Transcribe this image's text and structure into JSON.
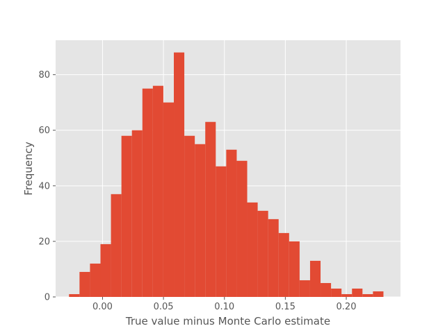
{
  "chart_data": {
    "type": "bar",
    "subtype": "histogram",
    "xlabel": "True value minus Monte Carlo estimate",
    "ylabel": "Frequency",
    "xlim": [
      -0.0385,
      0.2445
    ],
    "ylim": [
      0,
      92.4
    ],
    "grid": true,
    "style": "ggplot",
    "colors": {
      "bar": "#E24A33",
      "plot_background": "#E5E5E5",
      "grid": "#FFFFFF",
      "text": "#555555"
    },
    "bin_edges": [
      -0.0275,
      -0.0189,
      -0.0103,
      -0.0017,
      0.0069,
      0.0155,
      0.0241,
      0.0327,
      0.0413,
      0.0499,
      0.0585,
      0.0671,
      0.0757,
      0.0843,
      0.0929,
      0.1015,
      0.1101,
      0.1187,
      0.1273,
      0.1359,
      0.1445,
      0.1531,
      0.1617,
      0.1703,
      0.1789,
      0.1875,
      0.1961,
      0.2047,
      0.2133,
      0.2219,
      0.2305
    ],
    "counts": [
      1,
      9,
      12,
      19,
      37,
      58,
      60,
      75,
      76,
      70,
      88,
      58,
      55,
      63,
      47,
      53,
      49,
      34,
      31,
      28,
      23,
      20,
      6,
      13,
      5,
      3,
      1,
      3,
      1,
      2
    ],
    "xticks": [
      0.0,
      0.05,
      0.1,
      0.15,
      0.2
    ],
    "xtick_labels": [
      "0.00",
      "0.05",
      "0.10",
      "0.15",
      "0.20"
    ],
    "yticks": [
      0,
      20,
      40,
      60,
      80
    ],
    "ytick_labels": [
      "0",
      "20",
      "40",
      "60",
      "80"
    ]
  }
}
